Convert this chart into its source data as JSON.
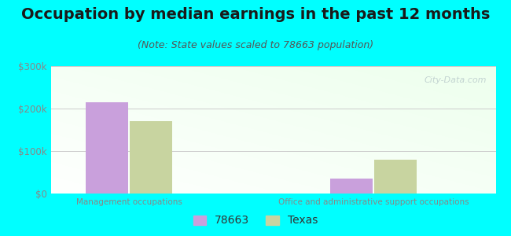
{
  "title": "Occupation by median earnings in the past 12 months",
  "subtitle": "(Note: State values scaled to 78663 population)",
  "background_color": "#00FFFF",
  "categories": [
    "Management occupations",
    "Office and administrative support occupations"
  ],
  "series": {
    "78663": [
      215000,
      35000
    ],
    "Texas": [
      170000,
      80000
    ]
  },
  "bar_colors": {
    "78663": "#c9a0dc",
    "Texas": "#c8d4a0"
  },
  "ylim": [
    0,
    300000
  ],
  "yticks": [
    0,
    100000,
    200000,
    300000
  ],
  "ytick_labels": [
    "$0",
    "$100k",
    "$200k",
    "$300k"
  ],
  "tick_color": "#888888",
  "grid_color": "#cccccc",
  "title_fontsize": 14,
  "subtitle_fontsize": 9,
  "legend_fontsize": 10,
  "watermark": "City-Data.com"
}
